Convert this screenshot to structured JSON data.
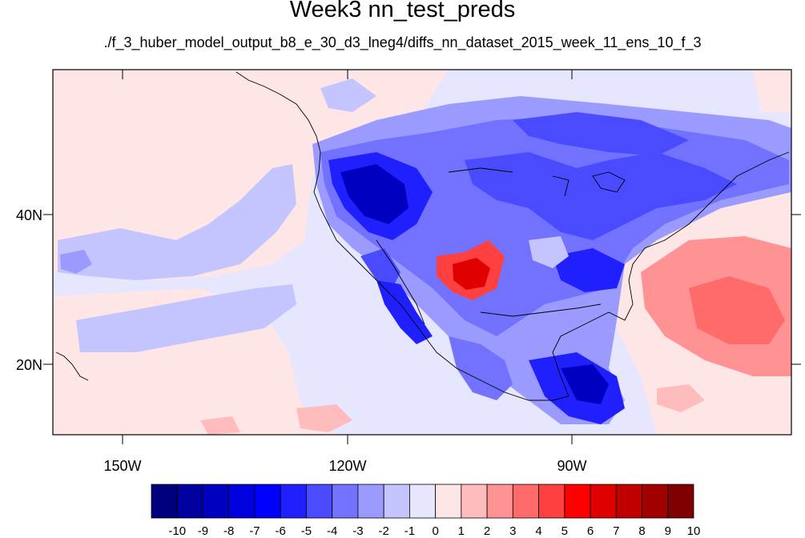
{
  "title": "Week3 nn_test_preds",
  "subtitle": "./f_3_huber_model_output_b8_e_30_d3_lneg4/diffs_nn_dataset_2015_week_11_ens_10_f_3",
  "lat_labels": [
    "40N",
    "20N"
  ],
  "lon_labels": [
    "150W",
    "120W",
    "90W"
  ],
  "colorbar": {
    "labels": [
      "-10",
      "-9",
      "-8",
      "-7",
      "-6",
      "-5",
      "-4",
      "-3",
      "-2",
      "-1",
      "0",
      "1",
      "2",
      "3",
      "4",
      "5",
      "6",
      "7",
      "8",
      "9",
      "10"
    ],
    "colors": [
      "#00007f",
      "#0000a0",
      "#0000c0",
      "#0000df",
      "#0000ff",
      "#2020ff",
      "#4a4aff",
      "#7272ff",
      "#9a9aff",
      "#c4c4ff",
      "#e6e6ff",
      "#ffe6e6",
      "#ffbcbc",
      "#ff9292",
      "#ff6a6a",
      "#ff4040",
      "#ff0000",
      "#e00000",
      "#c00000",
      "#a00000",
      "#7f0000"
    ]
  },
  "map_colors": {
    "neutral_blue": "#e6e6ff",
    "neutral_red": "#ffe6e6",
    "coast": "#000000"
  }
}
